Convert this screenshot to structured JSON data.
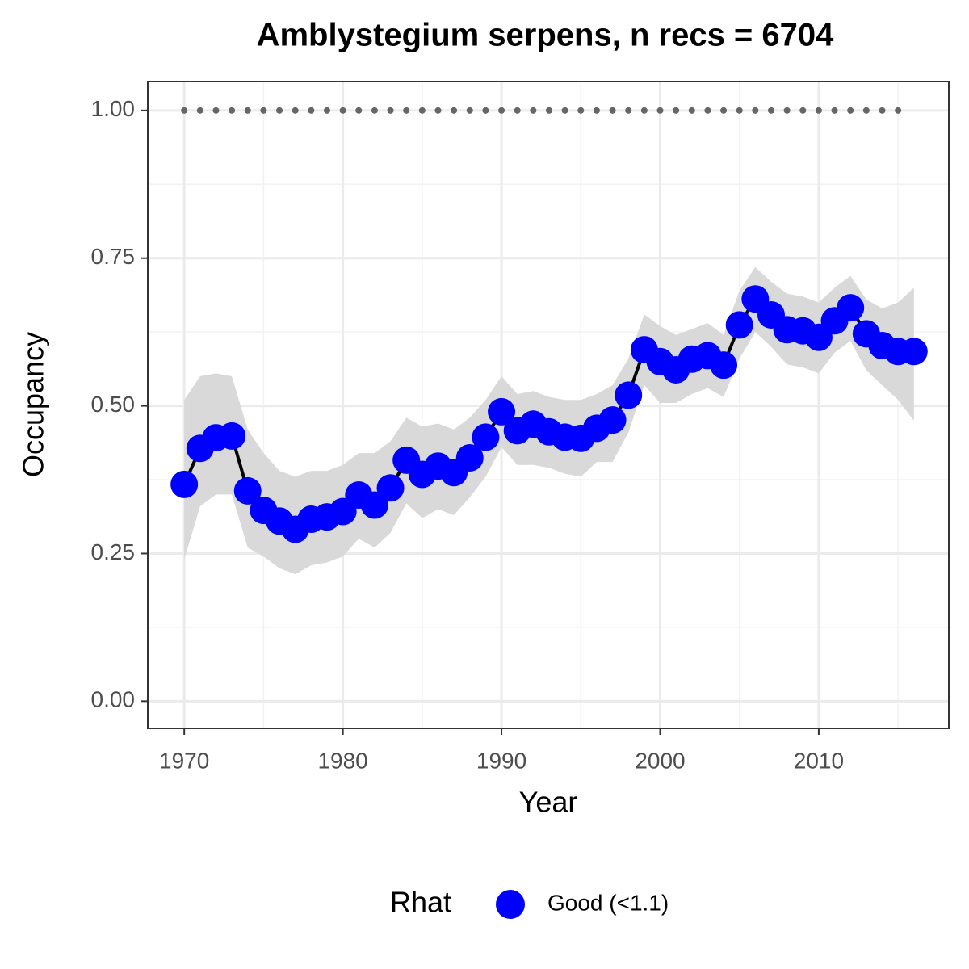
{
  "chart_data": {
    "type": "line",
    "title": "Amblystegium serpens, n recs = 6704",
    "x_label": "Year",
    "y_label": "Occupancy",
    "x": [
      1970,
      1971,
      1972,
      1973,
      1974,
      1975,
      1976,
      1977,
      1978,
      1979,
      1980,
      1981,
      1982,
      1983,
      1984,
      1985,
      1986,
      1987,
      1988,
      1989,
      1990,
      1991,
      1992,
      1993,
      1994,
      1995,
      1996,
      1997,
      1998,
      1999,
      2000,
      2001,
      2002,
      2003,
      2004,
      2005,
      2006,
      2007,
      2008,
      2009,
      2010,
      2011,
      2012,
      2013,
      2014,
      2015,
      2016
    ],
    "series": [
      {
        "name": "Good (<1.1)",
        "color": "#0000ff",
        "line_color": "#000000",
        "band_color": "#d9d9d9",
        "values": [
          0.367,
          0.428,
          0.446,
          0.449,
          0.356,
          0.323,
          0.305,
          0.291,
          0.308,
          0.312,
          0.321,
          0.349,
          0.332,
          0.361,
          0.408,
          0.384,
          0.398,
          0.387,
          0.412,
          0.447,
          0.49,
          0.458,
          0.469,
          0.456,
          0.447,
          0.445,
          0.462,
          0.476,
          0.518,
          0.595,
          0.575,
          0.561,
          0.579,
          0.585,
          0.569,
          0.637,
          0.681,
          0.654,
          0.629,
          0.627,
          0.616,
          0.644,
          0.666,
          0.622,
          0.602,
          0.592,
          0.592
        ],
        "upper": [
          0.51,
          0.55,
          0.555,
          0.55,
          0.46,
          0.42,
          0.39,
          0.38,
          0.39,
          0.39,
          0.4,
          0.42,
          0.42,
          0.44,
          0.48,
          0.465,
          0.47,
          0.46,
          0.48,
          0.51,
          0.55,
          0.52,
          0.525,
          0.515,
          0.51,
          0.51,
          0.52,
          0.535,
          0.58,
          0.655,
          0.635,
          0.62,
          0.63,
          0.64,
          0.62,
          0.695,
          0.735,
          0.71,
          0.69,
          0.685,
          0.675,
          0.7,
          0.72,
          0.68,
          0.665,
          0.675,
          0.7
        ],
        "lower": [
          0.24,
          0.33,
          0.35,
          0.35,
          0.26,
          0.245,
          0.225,
          0.215,
          0.23,
          0.235,
          0.245,
          0.275,
          0.26,
          0.285,
          0.335,
          0.31,
          0.325,
          0.315,
          0.345,
          0.38,
          0.43,
          0.4,
          0.4,
          0.395,
          0.385,
          0.38,
          0.405,
          0.405,
          0.455,
          0.535,
          0.505,
          0.505,
          0.52,
          0.53,
          0.515,
          0.58,
          0.625,
          0.6,
          0.57,
          0.565,
          0.555,
          0.59,
          0.61,
          0.56,
          0.535,
          0.51,
          0.475
        ]
      }
    ],
    "reference": {
      "color": "#666666",
      "values": [
        1,
        1,
        1,
        1,
        1,
        1,
        1,
        1,
        1,
        1,
        1,
        1,
        1,
        1,
        1,
        1,
        1,
        1,
        1,
        1,
        1,
        1,
        1,
        1,
        1,
        1,
        1,
        1,
        1,
        1,
        1,
        1,
        1,
        1,
        1,
        1,
        1,
        1,
        1,
        1,
        1,
        1,
        1,
        1,
        1,
        1,
        null
      ]
    },
    "legend_title": "Rhat",
    "legend_position": "bottom",
    "xlim": [
      1967.7,
      2018.2
    ],
    "ylim": [
      -0.046,
      1.049
    ],
    "xticks": [
      1970,
      1980,
      1990,
      2000,
      2010
    ],
    "yticks": [
      {
        "value": 0,
        "label": "0.00"
      },
      {
        "value": 0.25,
        "label": "0.25"
      },
      {
        "value": 0.5,
        "label": "0.50"
      },
      {
        "value": 0.75,
        "label": "0.75"
      },
      {
        "value": 1,
        "label": "1.00"
      }
    ],
    "grid": true
  }
}
